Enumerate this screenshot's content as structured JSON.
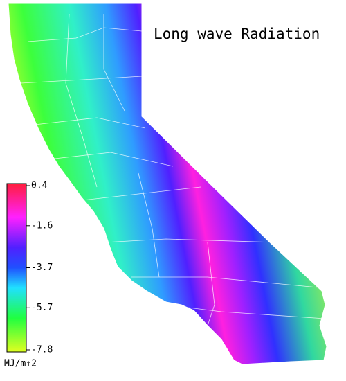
{
  "title": "Long wave Radiation",
  "colorbar": {
    "range": [
      -7.8,
      0.4
    ],
    "ticks": [
      0.4,
      -1.6,
      -3.7,
      -5.7,
      -7.8
    ],
    "unit": "MJ/m↑2"
  }
}
